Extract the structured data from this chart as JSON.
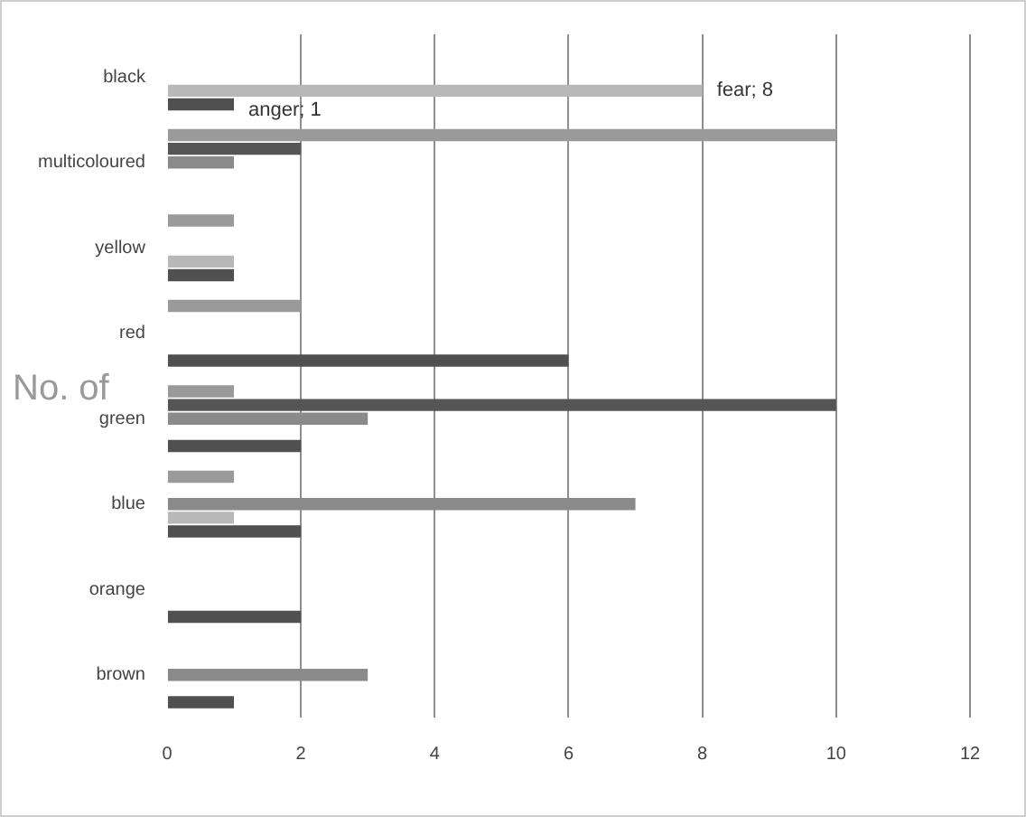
{
  "chart_data": {
    "type": "bar",
    "orientation": "horizontal",
    "categories": [
      "black",
      "multicoloured",
      "yellow",
      "red",
      "green",
      "blue",
      "orange",
      "brown"
    ],
    "series": [
      {
        "color": "#9a9a9a",
        "values": [
          null,
          10,
          1,
          2,
          1,
          1,
          null,
          null
        ]
      },
      {
        "color": "#555555",
        "values": [
          null,
          2,
          null,
          null,
          10,
          null,
          null,
          null
        ]
      },
      {
        "color": "#8a8a8a",
        "values": [
          null,
          1,
          null,
          null,
          3,
          7,
          null,
          3
        ]
      },
      {
        "color": "#b8b8b8",
        "values": [
          8,
          null,
          1,
          null,
          null,
          1,
          null,
          null
        ],
        "value_labels": [
          "fear; 8",
          null,
          null,
          null,
          null,
          null,
          null,
          null
        ]
      },
      {
        "color": "#505050",
        "values": [
          1,
          null,
          1,
          6,
          2,
          2,
          2,
          1
        ],
        "value_labels": [
          "anger; 1",
          null,
          null,
          null,
          null,
          null,
          null,
          null
        ]
      }
    ],
    "xlim": [
      0,
      12
    ],
    "xticks": [
      0,
      2,
      4,
      6,
      8,
      10,
      12
    ],
    "grid": "x",
    "legend": false,
    "annotations": [
      "No. of"
    ]
  }
}
